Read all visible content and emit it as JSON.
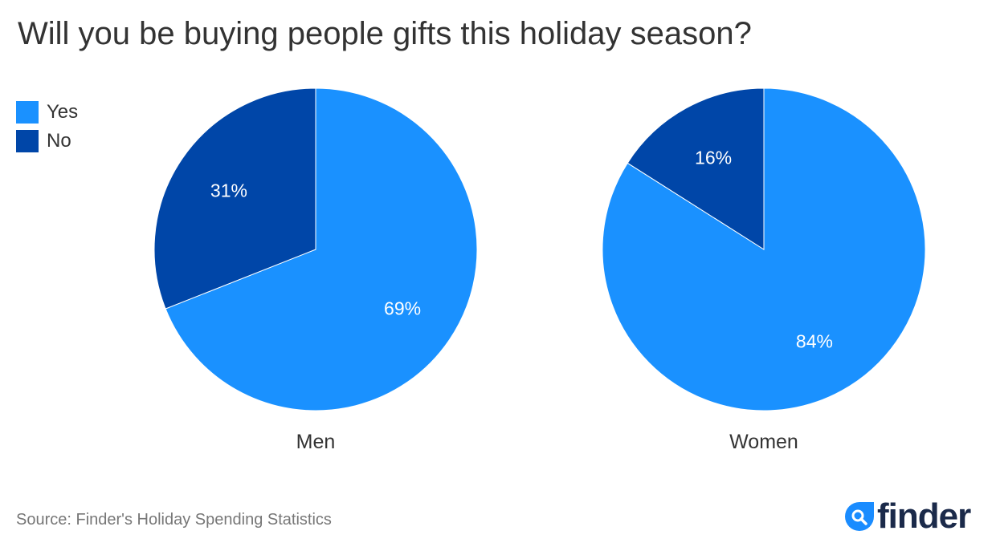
{
  "chart_data": [
    {
      "type": "pie",
      "name": "Men",
      "title": "Men",
      "categories": [
        "Yes",
        "No"
      ],
      "values": [
        69,
        31
      ],
      "labels": [
        "69%",
        "31%"
      ]
    },
    {
      "type": "pie",
      "name": "Women",
      "title": "Women",
      "categories": [
        "Yes",
        "No"
      ],
      "values": [
        84,
        16
      ],
      "labels": [
        "84%",
        "16%"
      ]
    }
  ],
  "title": "Will you be buying people gifts this holiday season?",
  "legend": [
    {
      "label": "Yes",
      "color": "#1a91ff"
    },
    {
      "label": "No",
      "color": "#0046a8"
    }
  ],
  "source": "Source: Finder's Holiday Spending Statistics",
  "logo": "finder"
}
